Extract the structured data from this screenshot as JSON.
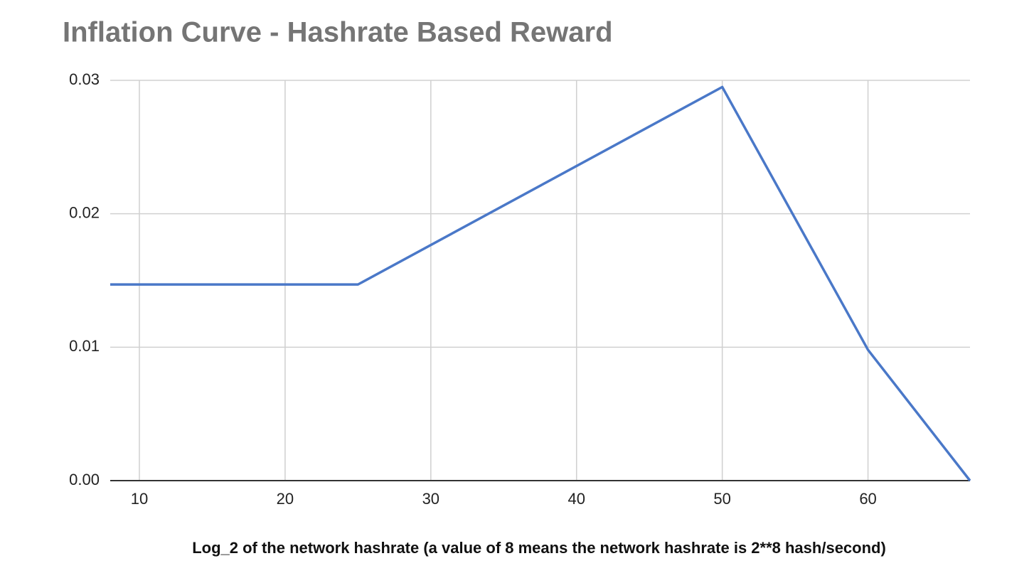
{
  "chart_data": {
    "type": "line",
    "title": "Inflation Curve - Hashrate Based Reward",
    "x_label": "Log_2 of the network hashrate (a value of 8 means the network hashrate is 2**8 hash/second)",
    "x": [
      8,
      25,
      50,
      60,
      67
    ],
    "series": [
      {
        "color": "#4a78c8",
        "values": [
          0.0147,
          0.0147,
          0.0295,
          0.0098,
          0
        ]
      }
    ],
    "xlim": [
      8,
      67
    ],
    "xticks": [
      10,
      20,
      30,
      40,
      50,
      60
    ],
    "ylim": [
      0,
      0.03
    ],
    "yticks": [
      {
        "value": 0,
        "label": "0.00"
      },
      0.01,
      0.02,
      0.03
    ],
    "grid": true
  }
}
